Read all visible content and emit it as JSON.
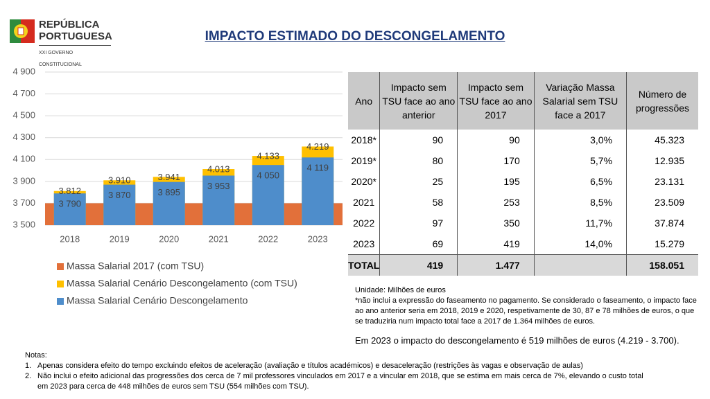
{
  "header": {
    "logo_line1": "REPÚBLICA",
    "logo_line2": "PORTUGUESA",
    "logo_line3": "XXI GOVERNO CONSTITUCIONAL",
    "title": "IMPACTO ESTIMADO DO DESCONGELAMENTO"
  },
  "chart_data": {
    "type": "bar",
    "categories": [
      "2018",
      "2019",
      "2020",
      "2021",
      "2022",
      "2023"
    ],
    "series": [
      {
        "name": "Massa Salarial 2017 (com TSU)",
        "color": "#E2703A",
        "values": [
          3700,
          3700,
          3700,
          3700,
          3700,
          3700
        ]
      },
      {
        "name": "Massa Salarial Cenário Descongelamento (com TSU)",
        "color": "#FFC000",
        "values": [
          3812,
          3910,
          3941,
          4013,
          4133,
          4219
        ],
        "value_labels": [
          "3.812",
          "3.910",
          "3.941",
          "4.013",
          "4.133",
          "4.219"
        ]
      },
      {
        "name": "Massa Salarial Cenário Descongelamento",
        "color": "#4E8DCB",
        "values": [
          3790,
          3870,
          3895,
          3953,
          4050,
          4119
        ],
        "value_labels": [
          "3 790",
          "3 870",
          "3 895",
          "3 953",
          "4 050",
          "4 119"
        ]
      }
    ],
    "ylim": [
      3500,
      4900
    ],
    "yticks": [
      {
        "value": 3500,
        "label": "3 500"
      },
      {
        "value": 3700,
        "label": "3 700"
      },
      {
        "value": 3900,
        "label": "3 900"
      },
      {
        "value": 4100,
        "label": "4 100"
      },
      {
        "value": 4300,
        "label": "4 300"
      },
      {
        "value": 4500,
        "label": "4 500"
      },
      {
        "value": 4700,
        "label": "4 700"
      },
      {
        "value": 4900,
        "label": "4 900"
      }
    ],
    "grid": true
  },
  "table": {
    "headers": [
      "Ano",
      "Impacto sem TSU face ao ano anterior",
      "Impacto sem TSU face ao ano 2017",
      "Variação Massa Salarial sem TSU face a 2017",
      "Número de progressões"
    ],
    "rows": [
      [
        "2018*",
        "90",
        "90",
        "3,0%",
        "45.323"
      ],
      [
        "2019*",
        "80",
        "170",
        "5,7%",
        "12.935"
      ],
      [
        "2020*",
        "25",
        "195",
        "6,5%",
        "23.131"
      ],
      [
        "2021",
        "58",
        "253",
        "8,5%",
        "23.509"
      ],
      [
        "2022",
        "97",
        "350",
        "11,7%",
        "37.874"
      ],
      [
        "2023",
        "69",
        "419",
        "14,0%",
        "15.279"
      ]
    ],
    "total": {
      "label": "TOTAL",
      "impact_previous": "419",
      "impact_2017": "1.477",
      "progressions": "158.051"
    }
  },
  "table_notes": {
    "unit": "Unidade: Milhões de euros",
    "footnote": "*não inclui a expressão do faseamento no pagamento. Se considerado o faseamento, o impacto face ao ano anterior seria em 2018, 2019 e 2020, respetivamente de 30, 87 e 78 milhões de euros, o que se traduziria num impacto total face a 2017 de 1.364 milhões de euros.",
    "conclusion": "Em 2023 o impacto do descongelamento é 519 milhões de euros (4.219 - 3.700)."
  },
  "notes": {
    "heading": "Notas:",
    "items": [
      {
        "number": "1.",
        "text": "Apenas considera efeito do tempo excluindo efeitos de aceleração (avaliação e títulos académicos) e desaceleração (restrições às vagas e observação de aulas)"
      },
      {
        "number": "2.",
        "text": "Não inclui o efeito adicional das progressões dos cerca de 7 mil professores vinculados em 2017 e a vincular em 2018, que se estima em mais cerca de 7%, elevando o custo total em 2023 para cerca de 448 milhões de euros sem TSU (554 milhões com TSU)."
      }
    ]
  }
}
